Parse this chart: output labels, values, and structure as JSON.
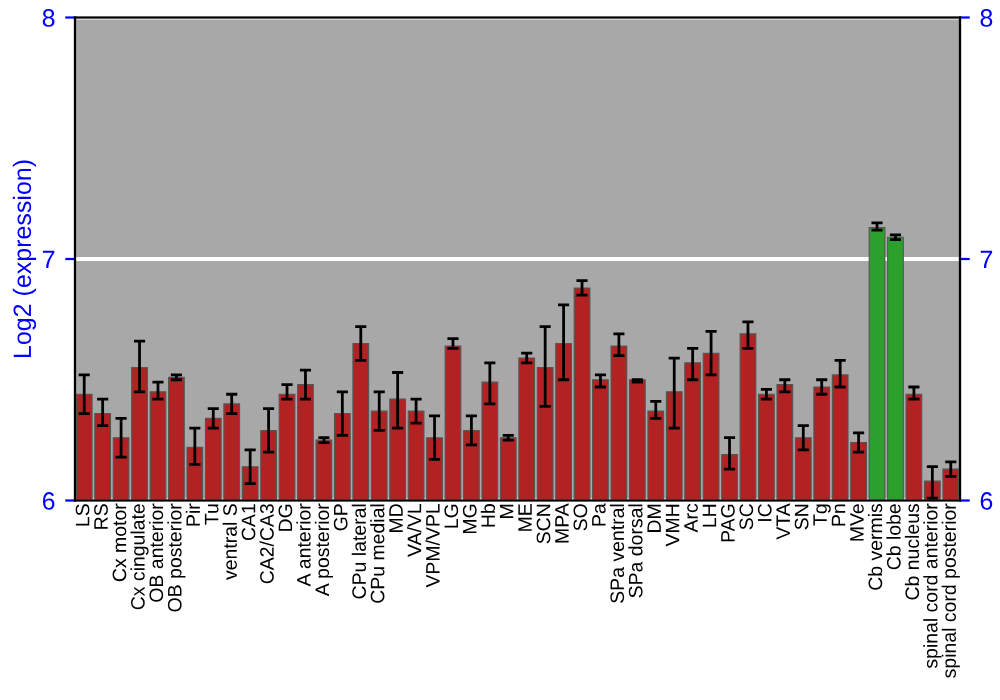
{
  "chart_data": {
    "type": "bar",
    "ylabel": "Log2 (expression)",
    "categories": [
      "LS",
      "RS",
      "Cx motor",
      "Cx cingulate",
      "OB anterior",
      "OB posterior",
      "Pir",
      "Tu",
      "ventral S",
      "CA1",
      "CA2/CA3",
      "DG",
      "A anterior",
      "A posterior",
      "GP",
      "CPu lateral",
      "CPu medial",
      "MD",
      "VA/VL",
      "VPM/VPL",
      "LG",
      "MG",
      "Hb",
      "M",
      "ME",
      "SCN",
      "MPA",
      "SO",
      "Pa",
      "SPa ventral",
      "SPa dorsal",
      "DM",
      "VMH",
      "Arc",
      "LH",
      "PAG",
      "SC",
      "IC",
      "VTA",
      "SN",
      "Tg",
      "Pn",
      "MVe",
      "Cb vermis",
      "Cb lobe",
      "Cb nucleus",
      "spinal cord anterior",
      "spinal cord posterior"
    ],
    "values": [
      6.44,
      6.36,
      6.26,
      6.55,
      6.45,
      6.51,
      6.22,
      6.34,
      6.4,
      6.14,
      6.29,
      6.44,
      6.48,
      6.25,
      6.36,
      6.65,
      6.37,
      6.42,
      6.37,
      6.26,
      6.64,
      6.29,
      6.49,
      6.26,
      6.59,
      6.55,
      6.65,
      6.88,
      6.5,
      6.64,
      6.5,
      6.37,
      6.45,
      6.57,
      6.61,
      6.19,
      6.69,
      6.44,
      6.48,
      6.26,
      6.47,
      6.52,
      6.24,
      7.13,
      7.09,
      6.44,
      6.08,
      6.13
    ],
    "errors": [
      [
        6.36,
        6.52
      ],
      [
        6.31,
        6.42
      ],
      [
        6.18,
        6.34
      ],
      [
        6.45,
        6.66
      ],
      [
        6.42,
        6.49
      ],
      [
        6.5,
        6.52
      ],
      [
        6.15,
        6.3
      ],
      [
        6.3,
        6.38
      ],
      [
        6.36,
        6.44
      ],
      [
        6.07,
        6.21
      ],
      [
        6.2,
        6.38
      ],
      [
        6.42,
        6.48
      ],
      [
        6.42,
        6.54
      ],
      [
        6.24,
        6.26
      ],
      [
        6.27,
        6.45
      ],
      [
        6.58,
        6.72
      ],
      [
        6.29,
        6.45
      ],
      [
        6.3,
        6.53
      ],
      [
        6.32,
        6.42
      ],
      [
        6.17,
        6.35
      ],
      [
        6.63,
        6.67
      ],
      [
        6.23,
        6.35
      ],
      [
        6.4,
        6.57
      ],
      [
        6.25,
        6.27
      ],
      [
        6.57,
        6.61
      ],
      [
        6.39,
        6.72
      ],
      [
        6.5,
        6.81
      ],
      [
        6.85,
        6.91
      ],
      [
        6.47,
        6.52
      ],
      [
        6.6,
        6.69
      ],
      [
        6.49,
        6.5
      ],
      [
        6.34,
        6.41
      ],
      [
        6.3,
        6.59
      ],
      [
        6.5,
        6.63
      ],
      [
        6.52,
        6.7
      ],
      [
        6.13,
        6.26
      ],
      [
        6.63,
        6.74
      ],
      [
        6.42,
        6.46
      ],
      [
        6.45,
        6.5
      ],
      [
        6.21,
        6.31
      ],
      [
        6.44,
        6.5
      ],
      [
        6.47,
        6.58
      ],
      [
        6.2,
        6.28
      ],
      [
        7.12,
        7.15
      ],
      [
        7.08,
        7.1
      ],
      [
        6.42,
        6.47
      ],
      [
        6.01,
        6.14
      ],
      [
        6.1,
        6.16
      ]
    ],
    "colors": [
      "#b22222",
      "#b22222",
      "#b22222",
      "#b22222",
      "#b22222",
      "#b22222",
      "#b22222",
      "#b22222",
      "#b22222",
      "#b22222",
      "#b22222",
      "#b22222",
      "#b22222",
      "#b22222",
      "#b22222",
      "#b22222",
      "#b22222",
      "#b22222",
      "#b22222",
      "#b22222",
      "#b22222",
      "#b22222",
      "#b22222",
      "#b22222",
      "#b22222",
      "#b22222",
      "#b22222",
      "#b22222",
      "#b22222",
      "#b22222",
      "#b22222",
      "#b22222",
      "#b22222",
      "#b22222",
      "#b22222",
      "#b22222",
      "#b22222",
      "#b22222",
      "#b22222",
      "#b22222",
      "#b22222",
      "#b22222",
      "#b22222",
      "#2ca02c",
      "#2ca02c",
      "#b22222",
      "#b22222",
      "#b22222"
    ],
    "ylim": [
      6,
      8
    ],
    "yticks": [
      6,
      7,
      8
    ],
    "y2lim": [
      6,
      8
    ],
    "y2ticks": [
      6,
      7,
      8
    ],
    "grid": "y"
  }
}
